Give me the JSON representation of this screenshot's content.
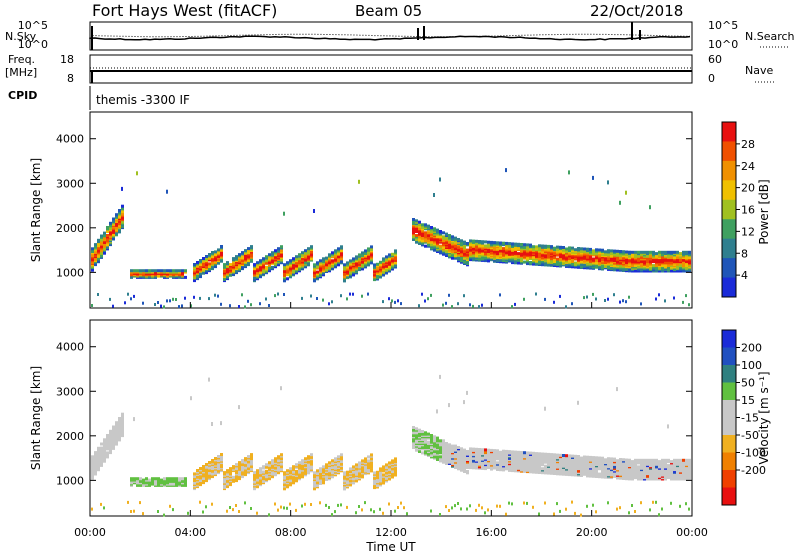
{
  "header": {
    "station": "Fort Hays West (fitACF)",
    "beam": "Beam 05",
    "date": "22/Oct/2018"
  },
  "noise_panel": {
    "left_label": "N.Sky",
    "right_label": "N.Search",
    "tick_top": "10^5",
    "tick_bottom": "10^0"
  },
  "freq_panel": {
    "left_label_1": "Freq.",
    "left_label_2": "[MHz]",
    "left_top": "18",
    "left_bottom": "8",
    "right_label": "Nave",
    "right_top": "60",
    "right_bottom": "0"
  },
  "cpid": {
    "label": "CPID",
    "value": "themis -3300 IF"
  },
  "colors": {
    "power_scale": [
      "#1a2bd8",
      "#1f55b8",
      "#2f7f8f",
      "#3fa060",
      "#a0c020",
      "#f0c000",
      "#f09000",
      "#f05000",
      "#e81010"
    ],
    "velocity_scale": [
      "#1a2bd8",
      "#2050c0",
      "#2f8080",
      "#60c040",
      "#c8c8c8",
      "#c8c8c8",
      "#f0b020",
      "#f08000",
      "#f04000",
      "#e81010"
    ]
  },
  "chart_data": [
    {
      "type": "heatmap",
      "name": "power",
      "ylabel": "Slant Range [km]",
      "xlabel": "Time UT",
      "x_ticks": [
        "00:00",
        "04:00",
        "08:00",
        "12:00",
        "16:00",
        "20:00",
        "00:00"
      ],
      "y_ticks": [
        1000,
        2000,
        3000,
        4000
      ],
      "ylim": [
        200,
        4600
      ],
      "colorbar": {
        "label": "Power [dB]",
        "ticks": [
          4,
          8,
          12,
          16,
          20,
          24,
          28
        ],
        "range": [
          0,
          32
        ]
      },
      "echo_regions": [
        {
          "t_start": 0.0,
          "t_end": 1.3,
          "range_start": 1000,
          "range_end": 2600
        },
        {
          "t_start": 1.5,
          "t_end": 3.8,
          "range_start": 800,
          "range_end": 1200
        },
        {
          "t_start": 4.0,
          "t_end": 12.2,
          "range_start": 800,
          "range_end": 1700
        },
        {
          "t_start": 12.8,
          "t_end": 24.0,
          "range_start": 1100,
          "range_end": 2400
        }
      ]
    },
    {
      "type": "heatmap",
      "name": "velocity",
      "ylabel": "Slant Range [km]",
      "xlabel": "Time UT",
      "x_ticks": [
        "00:00",
        "04:00",
        "08:00",
        "12:00",
        "16:00",
        "20:00",
        "00:00"
      ],
      "y_ticks": [
        1000,
        2000,
        3000,
        4000
      ],
      "ylim": [
        200,
        4600
      ],
      "colorbar": {
        "label": "Velocity [m s^-1]",
        "ticks": [
          200,
          100,
          50,
          15,
          -15,
          -50,
          -100,
          -200
        ],
        "range": [
          -250,
          250
        ]
      },
      "echo_regions": [
        {
          "t_start": 0.0,
          "t_end": 1.3,
          "range_start": 1000,
          "range_end": 2600
        },
        {
          "t_start": 1.5,
          "t_end": 3.8,
          "range_start": 800,
          "range_end": 1200
        },
        {
          "t_start": 4.0,
          "t_end": 12.2,
          "range_start": 800,
          "range_end": 1700
        },
        {
          "t_start": 12.8,
          "t_end": 24.0,
          "range_start": 1100,
          "range_end": 2400
        }
      ]
    }
  ]
}
